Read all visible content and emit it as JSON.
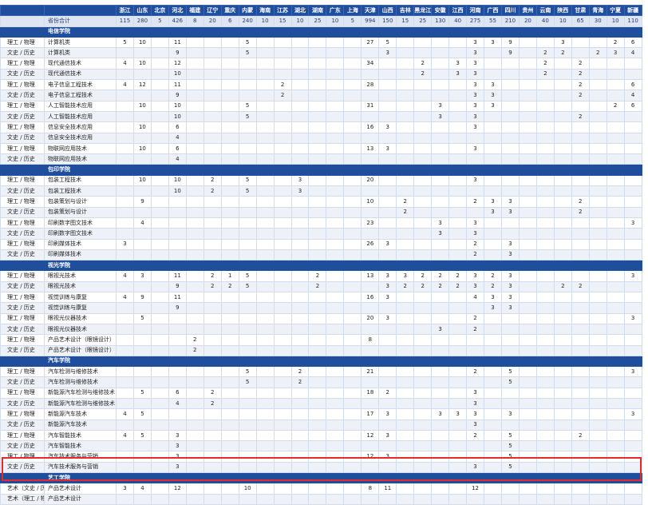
{
  "provinces": [
    "浙江",
    "山东",
    "北京",
    "河北",
    "福建",
    "辽宁",
    "重庆",
    "内蒙",
    "海南",
    "江苏",
    "湖北",
    "湖南",
    "广东",
    "上海",
    "天津",
    "山西",
    "吉林",
    "黑龙江",
    "安徽",
    "江西",
    "河南",
    "广西",
    "四川",
    "贵州",
    "云南",
    "陕西",
    "甘肃",
    "青海",
    "宁夏",
    "新疆"
  ],
  "total": {
    "label": "省份合计",
    "values": [
      "115",
      "280",
      "5",
      "426",
      "8",
      "20",
      "6",
      "240",
      "10",
      "15",
      "10",
      "25",
      "10",
      "5",
      "994",
      "150",
      "15",
      "25",
      "130",
      "40",
      "275",
      "55",
      "210",
      "20",
      "40",
      "10",
      "65",
      "30",
      "10",
      "110"
    ]
  },
  "sections": [
    {
      "name": "电信学院",
      "rows": [
        {
          "cat": "理工 / 物理",
          "major": "计算机类",
          "v": {
            "0": "5",
            "1": "10",
            "3": "11",
            "7": "5",
            "14": "27",
            "15": "5",
            "20": "3",
            "21": "3",
            "22": "9",
            "25": "3",
            "28": "2",
            "29": "6"
          }
        },
        {
          "cat": "文史 / 历史",
          "major": "计算机类",
          "v": {
            "3": "9",
            "7": "5",
            "15": "3",
            "20": "3",
            "22": "9",
            "24": "2",
            "25": "2",
            "27": "2",
            "28": "3",
            "29": "4"
          }
        },
        {
          "cat": "理工 / 物理",
          "major": "现代通信技术",
          "v": {
            "0": "4",
            "1": "10",
            "3": "12",
            "14": "34",
            "17": "2",
            "19": "3",
            "20": "3",
            "24": "2",
            "26": "2"
          }
        },
        {
          "cat": "文史 / 历史",
          "major": "现代通信技术",
          "v": {
            "3": "10",
            "17": "2",
            "19": "3",
            "20": "3",
            "24": "2",
            "26": "2"
          }
        },
        {
          "cat": "理工 / 物理",
          "major": "电子信息工程技术",
          "v": {
            "0": "4",
            "1": "12",
            "3": "11",
            "9": "2",
            "14": "28",
            "20": "3",
            "21": "3",
            "26": "2",
            "29": "6"
          }
        },
        {
          "cat": "文史 / 历史",
          "major": "电子信息工程技术",
          "v": {
            "3": "9",
            "9": "2",
            "20": "3",
            "21": "3",
            "26": "2",
            "29": "4"
          }
        },
        {
          "cat": "理工 / 物理",
          "major": "人工智能技术应用",
          "v": {
            "1": "10",
            "3": "10",
            "7": "5",
            "14": "31",
            "18": "3",
            "20": "3",
            "21": "3",
            "28": "2",
            "29": "6"
          }
        },
        {
          "cat": "文史 / 历史",
          "major": "人工智能技术应用",
          "v": {
            "3": "10",
            "7": "5",
            "18": "3",
            "20": "3",
            "26": "2"
          }
        },
        {
          "cat": "理工 / 物理",
          "major": "信息安全技术应用",
          "v": {
            "1": "10",
            "3": "6",
            "14": "16",
            "15": "3",
            "20": "3"
          }
        },
        {
          "cat": "文史 / 历史",
          "major": "信息安全技术应用",
          "v": {
            "3": "4"
          }
        },
        {
          "cat": "理工 / 物理",
          "major": "物联网应用技术",
          "v": {
            "1": "10",
            "3": "6",
            "14": "13",
            "15": "3",
            "20": "3"
          }
        },
        {
          "cat": "文史 / 历史",
          "major": "物联网应用技术",
          "v": {
            "3": "4"
          }
        }
      ]
    },
    {
      "name": "包印学院",
      "rows": [
        {
          "cat": "理工 / 物理",
          "major": "包装工程技术",
          "v": {
            "1": "10",
            "3": "10",
            "5": "2",
            "7": "5",
            "10": "3",
            "14": "20",
            "20": "3"
          }
        },
        {
          "cat": "文史 / 历史",
          "major": "包装工程技术",
          "v": {
            "3": "10",
            "5": "2",
            "7": "5",
            "10": "3"
          }
        },
        {
          "cat": "理工 / 物理",
          "major": "包装策划与设计",
          "v": {
            "1": "9",
            "14": "10",
            "16": "2",
            "20": "2",
            "21": "3",
            "22": "3",
            "26": "2"
          }
        },
        {
          "cat": "文史 / 历史",
          "major": "包装策划与设计",
          "v": {
            "16": "2",
            "21": "3",
            "22": "3",
            "26": "2"
          }
        },
        {
          "cat": "理工 / 物理",
          "major": "印刷数字图文技术",
          "v": {
            "1": "4",
            "14": "23",
            "18": "3",
            "20": "3",
            "29": "3"
          }
        },
        {
          "cat": "文史 / 历史",
          "major": "印刷数字图文技术",
          "v": {
            "18": "3",
            "20": "3"
          }
        },
        {
          "cat": "理工 / 物理",
          "major": "印刷媒体技术",
          "v": {
            "0": "3",
            "14": "26",
            "15": "3",
            "20": "2",
            "22": "3"
          }
        },
        {
          "cat": "文史 / 历史",
          "major": "印刷媒体技术",
          "v": {
            "20": "2",
            "22": "3"
          }
        }
      ]
    },
    {
      "name": "视光学院",
      "rows": [
        {
          "cat": "理工 / 物理",
          "major": "眼视光技术",
          "v": {
            "0": "4",
            "1": "3",
            "3": "11",
            "5": "2",
            "6": "1",
            "7": "5",
            "11": "2",
            "14": "13",
            "15": "3",
            "16": "3",
            "17": "2",
            "18": "2",
            "19": "2",
            "20": "3",
            "21": "2",
            "22": "3",
            "29": "3"
          }
        },
        {
          "cat": "文史 / 历史",
          "major": "眼视光技术",
          "v": {
            "3": "9",
            "5": "2",
            "6": "2",
            "7": "5",
            "11": "2",
            "15": "3",
            "16": "2",
            "17": "2",
            "18": "2",
            "19": "2",
            "20": "3",
            "21": "2",
            "22": "3",
            "25": "2",
            "26": "2"
          }
        },
        {
          "cat": "理工 / 物理",
          "major": "视觉训练与康复",
          "v": {
            "0": "4",
            "1": "9",
            "3": "11",
            "14": "16",
            "15": "3",
            "20": "4",
            "21": "3",
            "22": "3"
          }
        },
        {
          "cat": "文史 / 历史",
          "major": "视觉训练与康复",
          "v": {
            "3": "9",
            "21": "3",
            "22": "3"
          }
        },
        {
          "cat": "理工 / 物理",
          "major": "眼视光仪器技术",
          "v": {
            "1": "5",
            "14": "20",
            "15": "3",
            "20": "2",
            "29": "3"
          }
        },
        {
          "cat": "文史 / 历史",
          "major": "眼视光仪器技术",
          "v": {
            "18": "3",
            "20": "2"
          }
        },
        {
          "cat": "理工 / 物理",
          "major": "产品艺术设计（眼镜设计）",
          "v": {
            "4": "2",
            "14": "8"
          }
        },
        {
          "cat": "文史 / 历史",
          "major": "产品艺术设计（眼镜设计）",
          "v": {
            "4": "2"
          }
        }
      ]
    },
    {
      "name": "汽车学院",
      "rows": [
        {
          "cat": "理工 / 物理",
          "major": "汽车检测与维修技术",
          "v": {
            "7": "5",
            "10": "2",
            "14": "21",
            "20": "2",
            "22": "5",
            "29": "3"
          }
        },
        {
          "cat": "文史 / 历史",
          "major": "汽车检测与维修技术",
          "v": {
            "7": "5",
            "10": "2",
            "22": "5"
          }
        },
        {
          "cat": "理工 / 物理",
          "major": "新能源汽车检测与维修技术",
          "v": {
            "1": "5",
            "3": "6",
            "5": "2",
            "14": "18",
            "15": "2",
            "20": "3"
          }
        },
        {
          "cat": "文史 / 历史",
          "major": "新能源汽车检测与维修技术",
          "v": {
            "3": "4",
            "5": "2",
            "20": "3"
          }
        },
        {
          "cat": "理工 / 物理",
          "major": "新能源汽车技术",
          "v": {
            "0": "4",
            "1": "5",
            "14": "17",
            "15": "3",
            "18": "3",
            "19": "3",
            "20": "3",
            "22": "3",
            "29": "3"
          }
        },
        {
          "cat": "文史 / 历史",
          "major": "新能源汽车技术",
          "v": {
            "20": "3"
          }
        },
        {
          "cat": "理工 / 物理",
          "major": "汽车智能技术",
          "v": {
            "0": "4",
            "1": "5",
            "3": "3",
            "14": "12",
            "15": "3",
            "20": "2",
            "22": "5",
            "26": "2"
          }
        },
        {
          "cat": "文史 / 历史",
          "major": "汽车智能技术",
          "v": {
            "3": "3",
            "22": "5"
          }
        },
        {
          "cat": "理工 / 物理",
          "major": "汽车技术服务与营销",
          "v": {
            "3": "3",
            "14": "12",
            "15": "3",
            "22": "5"
          }
        },
        {
          "cat": "文史 / 历史",
          "major": "汽车技术服务与营销",
          "v": {
            "3": "3",
            "20": "3",
            "22": "5"
          }
        }
      ]
    },
    {
      "name": "艺工学院",
      "rows": [
        {
          "cat": "艺术（文史 / 历史）",
          "major": "产品艺术设计",
          "v": {
            "0": "3",
            "1": "4",
            "3": "12",
            "7": "10",
            "14": "8",
            "15": "11",
            "20": "12"
          }
        },
        {
          "cat": "艺术（理工 / 物理）",
          "major": "产品艺术设计",
          "v": {}
        }
      ]
    }
  ],
  "colors": {
    "header_blue": "#1f4e9c",
    "highlight_red": "#e32b2b"
  }
}
